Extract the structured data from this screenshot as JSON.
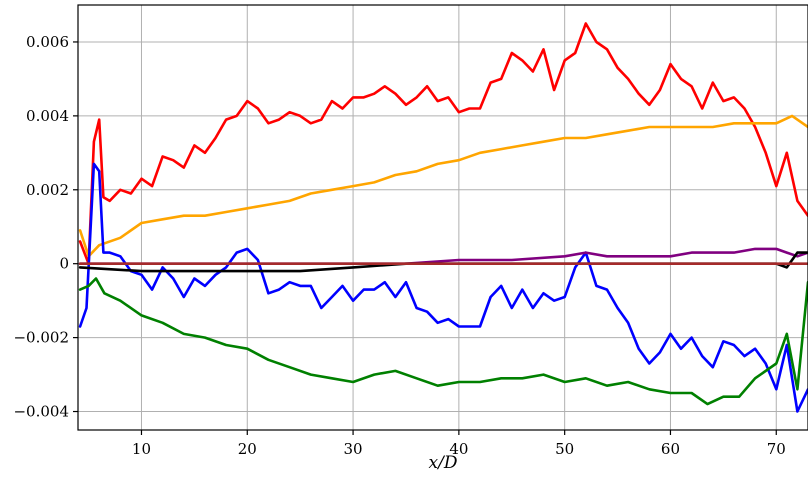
{
  "chart_data": {
    "type": "line",
    "title": "",
    "xlabel": "x/D",
    "ylabel": "",
    "xlim": [
      4,
      73
    ],
    "ylim": [
      -0.0045,
      0.007
    ],
    "grid": true,
    "x_ticks": [
      10,
      20,
      30,
      40,
      50,
      60,
      70
    ],
    "x_tick_labels": [
      "10",
      "20",
      "30",
      "40",
      "50",
      "60",
      "70"
    ],
    "y_ticks": [
      -0.004,
      -0.002,
      0,
      0.002,
      0.004,
      0.006
    ],
    "y_tick_labels": [
      "−0.004",
      "−0.002",
      "0",
      "0.002",
      "0.004",
      "0.006"
    ],
    "series": [
      {
        "color": "#ff0000",
        "points": [
          [
            4.2,
            0.0006
          ],
          [
            5.0,
            0.0
          ],
          [
            5.5,
            0.0033
          ],
          [
            6.0,
            0.0039
          ],
          [
            6.4,
            0.0018
          ],
          [
            7.0,
            0.0017
          ],
          [
            8.0,
            0.002
          ],
          [
            9.0,
            0.0019
          ],
          [
            10.0,
            0.0023
          ],
          [
            11.0,
            0.0021
          ],
          [
            12.0,
            0.0029
          ],
          [
            13.0,
            0.0028
          ],
          [
            14.0,
            0.0026
          ],
          [
            15.0,
            0.0032
          ],
          [
            16.0,
            0.003
          ],
          [
            17.0,
            0.0034
          ],
          [
            18.0,
            0.0039
          ],
          [
            19.0,
            0.004
          ],
          [
            20.0,
            0.0044
          ],
          [
            21.0,
            0.0042
          ],
          [
            22.0,
            0.0038
          ],
          [
            23.0,
            0.0039
          ],
          [
            24.0,
            0.0041
          ],
          [
            25.0,
            0.004
          ],
          [
            26.0,
            0.0038
          ],
          [
            27.0,
            0.0039
          ],
          [
            28.0,
            0.0044
          ],
          [
            29.0,
            0.0042
          ],
          [
            30.0,
            0.0045
          ],
          [
            31.0,
            0.0045
          ],
          [
            32.0,
            0.0046
          ],
          [
            33.0,
            0.0048
          ],
          [
            34.0,
            0.0046
          ],
          [
            35.0,
            0.0043
          ],
          [
            36.0,
            0.0045
          ],
          [
            37.0,
            0.0048
          ],
          [
            38.0,
            0.0044
          ],
          [
            39.0,
            0.0045
          ],
          [
            40.0,
            0.0041
          ],
          [
            41.0,
            0.0042
          ],
          [
            42.0,
            0.0042
          ],
          [
            43.0,
            0.0049
          ],
          [
            44.0,
            0.005
          ],
          [
            45.0,
            0.0057
          ],
          [
            46.0,
            0.0055
          ],
          [
            47.0,
            0.0052
          ],
          [
            48.0,
            0.0058
          ],
          [
            49.0,
            0.0047
          ],
          [
            50.0,
            0.0055
          ],
          [
            51.0,
            0.0057
          ],
          [
            52.0,
            0.0065
          ],
          [
            53.0,
            0.006
          ],
          [
            54.0,
            0.0058
          ],
          [
            55.0,
            0.0053
          ],
          [
            56.0,
            0.005
          ],
          [
            57.0,
            0.0046
          ],
          [
            58.0,
            0.0043
          ],
          [
            59.0,
            0.0047
          ],
          [
            60.0,
            0.0054
          ],
          [
            61.0,
            0.005
          ],
          [
            62.0,
            0.0048
          ],
          [
            63.0,
            0.0042
          ],
          [
            64.0,
            0.0049
          ],
          [
            65.0,
            0.0044
          ],
          [
            66.0,
            0.0045
          ],
          [
            67.0,
            0.0042
          ],
          [
            68.0,
            0.0037
          ],
          [
            69.0,
            0.003
          ],
          [
            70.0,
            0.0021
          ],
          [
            71.0,
            0.003
          ],
          [
            72.0,
            0.0017
          ],
          [
            73.0,
            0.0013
          ]
        ]
      },
      {
        "color": "#ffa500",
        "points": [
          [
            4.2,
            0.0009
          ],
          [
            5.0,
            0.0002
          ],
          [
            6.0,
            0.0005
          ],
          [
            8.0,
            0.0007
          ],
          [
            10.0,
            0.0011
          ],
          [
            12.0,
            0.0012
          ],
          [
            14.0,
            0.0013
          ],
          [
            16.0,
            0.0013
          ],
          [
            18.0,
            0.0014
          ],
          [
            20.0,
            0.0015
          ],
          [
            22.0,
            0.0016
          ],
          [
            24.0,
            0.0017
          ],
          [
            26.0,
            0.0019
          ],
          [
            28.0,
            0.002
          ],
          [
            30.0,
            0.0021
          ],
          [
            32.0,
            0.0022
          ],
          [
            34.0,
            0.0024
          ],
          [
            36.0,
            0.0025
          ],
          [
            38.0,
            0.0027
          ],
          [
            40.0,
            0.0028
          ],
          [
            42.0,
            0.003
          ],
          [
            44.0,
            0.0031
          ],
          [
            46.0,
            0.0032
          ],
          [
            48.0,
            0.0033
          ],
          [
            50.0,
            0.0034
          ],
          [
            52.0,
            0.0034
          ],
          [
            54.0,
            0.0035
          ],
          [
            56.0,
            0.0036
          ],
          [
            58.0,
            0.0037
          ],
          [
            60.0,
            0.0037
          ],
          [
            62.0,
            0.0037
          ],
          [
            64.0,
            0.0037
          ],
          [
            66.0,
            0.0038
          ],
          [
            68.0,
            0.0038
          ],
          [
            70.0,
            0.0038
          ],
          [
            71.5,
            0.004
          ],
          [
            73.0,
            0.0037
          ]
        ]
      },
      {
        "color": "#0000ff",
        "points": [
          [
            4.2,
            -0.0017
          ],
          [
            4.8,
            -0.0012
          ],
          [
            5.5,
            0.0027
          ],
          [
            6.0,
            0.0025
          ],
          [
            6.4,
            0.0003
          ],
          [
            7.0,
            0.0003
          ],
          [
            8.0,
            0.0002
          ],
          [
            9.0,
            -0.0002
          ],
          [
            10.0,
            -0.0003
          ],
          [
            11.0,
            -0.0007
          ],
          [
            12.0,
            -0.0001
          ],
          [
            13.0,
            -0.0004
          ],
          [
            14.0,
            -0.0009
          ],
          [
            15.0,
            -0.0004
          ],
          [
            16.0,
            -0.0006
          ],
          [
            17.0,
            -0.0003
          ],
          [
            18.0,
            -0.0001
          ],
          [
            19.0,
            0.0003
          ],
          [
            20.0,
            0.0004
          ],
          [
            21.0,
            0.0001
          ],
          [
            22.0,
            -0.0008
          ],
          [
            23.0,
            -0.0007
          ],
          [
            24.0,
            -0.0005
          ],
          [
            25.0,
            -0.0006
          ],
          [
            26.0,
            -0.0006
          ],
          [
            27.0,
            -0.0012
          ],
          [
            28.0,
            -0.0009
          ],
          [
            29.0,
            -0.0006
          ],
          [
            30.0,
            -0.001
          ],
          [
            31.0,
            -0.0007
          ],
          [
            32.0,
            -0.0007
          ],
          [
            33.0,
            -0.0005
          ],
          [
            34.0,
            -0.0009
          ],
          [
            35.0,
            -0.0005
          ],
          [
            36.0,
            -0.0012
          ],
          [
            37.0,
            -0.0013
          ],
          [
            38.0,
            -0.0016
          ],
          [
            39.0,
            -0.0015
          ],
          [
            40.0,
            -0.0017
          ],
          [
            41.0,
            -0.0017
          ],
          [
            42.0,
            -0.0017
          ],
          [
            43.0,
            -0.0009
          ],
          [
            44.0,
            -0.0006
          ],
          [
            45.0,
            -0.0012
          ],
          [
            46.0,
            -0.0007
          ],
          [
            47.0,
            -0.0012
          ],
          [
            48.0,
            -0.0008
          ],
          [
            49.0,
            -0.001
          ],
          [
            50.0,
            -0.0009
          ],
          [
            51.0,
            -0.0001
          ],
          [
            52.0,
            0.0003
          ],
          [
            53.0,
            -0.0006
          ],
          [
            54.0,
            -0.0007
          ],
          [
            55.0,
            -0.0012
          ],
          [
            56.0,
            -0.0016
          ],
          [
            57.0,
            -0.0023
          ],
          [
            58.0,
            -0.0027
          ],
          [
            59.0,
            -0.0024
          ],
          [
            60.0,
            -0.0019
          ],
          [
            61.0,
            -0.0023
          ],
          [
            62.0,
            -0.002
          ],
          [
            63.0,
            -0.0025
          ],
          [
            64.0,
            -0.0028
          ],
          [
            65.0,
            -0.0021
          ],
          [
            66.0,
            -0.0022
          ],
          [
            67.0,
            -0.0025
          ],
          [
            68.0,
            -0.0023
          ],
          [
            69.0,
            -0.0027
          ],
          [
            70.0,
            -0.0034
          ],
          [
            71.0,
            -0.0022
          ],
          [
            72.0,
            -0.004
          ],
          [
            73.0,
            -0.0034
          ]
        ]
      },
      {
        "color": "#008000",
        "points": [
          [
            4.2,
            -0.0007
          ],
          [
            5.0,
            -0.0006
          ],
          [
            5.7,
            -0.0004
          ],
          [
            6.5,
            -0.0008
          ],
          [
            8.0,
            -0.001
          ],
          [
            10.0,
            -0.0014
          ],
          [
            12.0,
            -0.0016
          ],
          [
            14.0,
            -0.0019
          ],
          [
            16.0,
            -0.002
          ],
          [
            18.0,
            -0.0022
          ],
          [
            20.0,
            -0.0023
          ],
          [
            22.0,
            -0.0026
          ],
          [
            24.0,
            -0.0028
          ],
          [
            26.0,
            -0.003
          ],
          [
            28.0,
            -0.0031
          ],
          [
            30.0,
            -0.0032
          ],
          [
            32.0,
            -0.003
          ],
          [
            34.0,
            -0.0029
          ],
          [
            36.0,
            -0.0031
          ],
          [
            38.0,
            -0.0033
          ],
          [
            40.0,
            -0.0032
          ],
          [
            42.0,
            -0.0032
          ],
          [
            44.0,
            -0.0031
          ],
          [
            46.0,
            -0.0031
          ],
          [
            48.0,
            -0.003
          ],
          [
            50.0,
            -0.0032
          ],
          [
            52.0,
            -0.0031
          ],
          [
            54.0,
            -0.0033
          ],
          [
            56.0,
            -0.0032
          ],
          [
            58.0,
            -0.0034
          ],
          [
            60.0,
            -0.0035
          ],
          [
            62.0,
            -0.0035
          ],
          [
            63.5,
            -0.0038
          ],
          [
            65.0,
            -0.0036
          ],
          [
            66.5,
            -0.0036
          ],
          [
            68.0,
            -0.0031
          ],
          [
            70.0,
            -0.0027
          ],
          [
            71.0,
            -0.0019
          ],
          [
            72.0,
            -0.0034
          ],
          [
            73.0,
            -0.0005
          ]
        ]
      },
      {
        "color": "#800080",
        "points": [
          [
            4.2,
            0.0
          ],
          [
            10.0,
            0.0
          ],
          [
            20.0,
            0.0
          ],
          [
            30.0,
            0.0
          ],
          [
            35.0,
            0.0
          ],
          [
            40.0,
            0.0001
          ],
          [
            45.0,
            0.0001
          ],
          [
            50.0,
            0.0002
          ],
          [
            52.0,
            0.0003
          ],
          [
            54.0,
            0.0002
          ],
          [
            56.0,
            0.0002
          ],
          [
            58.0,
            0.0002
          ],
          [
            60.0,
            0.0002
          ],
          [
            62.0,
            0.0003
          ],
          [
            64.0,
            0.0003
          ],
          [
            66.0,
            0.0003
          ],
          [
            68.0,
            0.0004
          ],
          [
            70.0,
            0.0004
          ],
          [
            71.0,
            0.0003
          ],
          [
            72.0,
            0.0002
          ],
          [
            73.0,
            0.0003
          ]
        ]
      },
      {
        "color": "#000000",
        "points": [
          [
            4.2,
            -0.0001
          ],
          [
            10.0,
            -0.0002
          ],
          [
            15.0,
            -0.0002
          ],
          [
            20.0,
            -0.0002
          ],
          [
            25.0,
            -0.0002
          ],
          [
            30.0,
            -0.0001
          ],
          [
            35.0,
            0.0
          ],
          [
            40.0,
            0.0
          ],
          [
            45.0,
            0.0
          ],
          [
            50.0,
            0.0
          ],
          [
            55.0,
            0.0
          ],
          [
            60.0,
            0.0
          ],
          [
            65.0,
            0.0
          ],
          [
            70.0,
            0.0
          ],
          [
            71.0,
            -0.0001
          ],
          [
            72.0,
            0.0003
          ],
          [
            73.0,
            0.0003
          ]
        ]
      },
      {
        "color": "#a52a2a",
        "points": [
          [
            4.2,
            0.0
          ],
          [
            20.0,
            0.0
          ],
          [
            40.0,
            0.0
          ],
          [
            60.0,
            0.0
          ],
          [
            73.0,
            0.0
          ]
        ]
      }
    ]
  }
}
